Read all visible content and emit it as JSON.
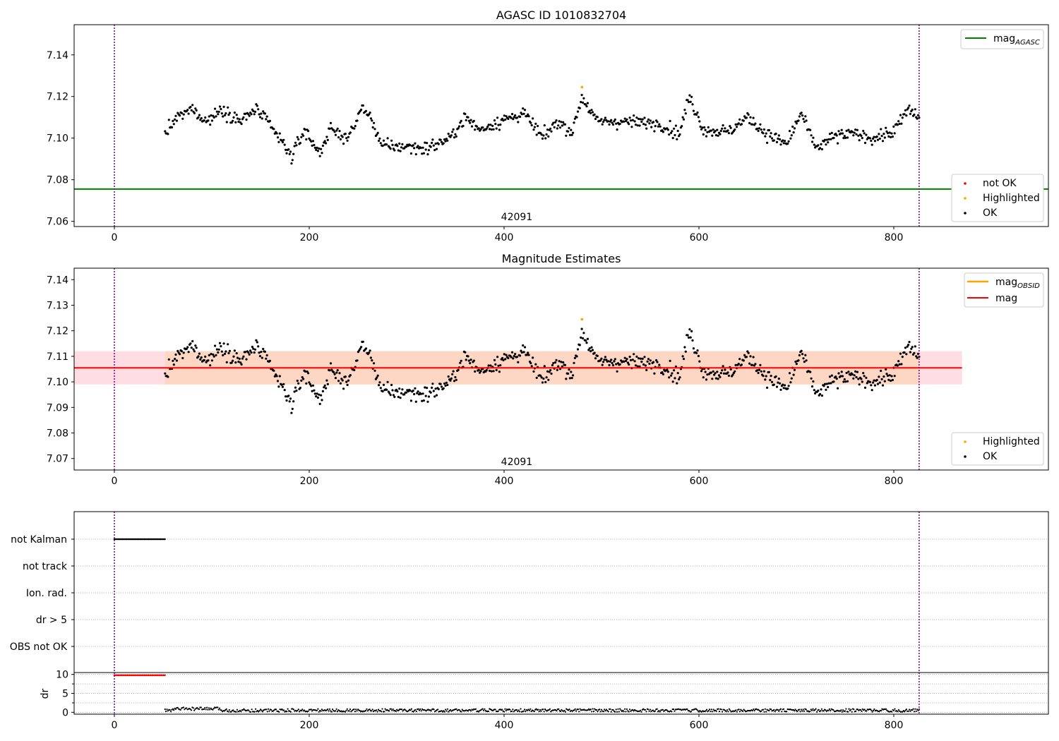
{
  "chart_data": [
    {
      "type": "scatter",
      "title": "AGASC ID 1010832704",
      "xlabel": "",
      "ylabel": "",
      "xlim": [
        -42,
        956
      ],
      "ylim": [
        7.0575,
        7.1545
      ],
      "x_ticks": [
        "0",
        "200",
        "400",
        "600",
        "800"
      ],
      "y_ticks": [
        "7.06",
        "7.08",
        "7.10",
        "7.12",
        "7.14"
      ],
      "vlines": [
        0,
        826
      ],
      "hline": {
        "label": "mag",
        "label_sub": "AGASC",
        "value": 7.0755,
        "color": "#008000"
      },
      "annotation": {
        "text": "42091",
        "x": 413,
        "y": 7.0605
      },
      "scatter_legend": [
        {
          "label": "not OK",
          "color": "#ff0000"
        },
        {
          "label": "Highlighted",
          "color": "#ffa500"
        },
        {
          "label": "OK",
          "color": "#000000"
        }
      ],
      "highlighted_point": {
        "x": 480,
        "y": 7.1245
      },
      "series": [
        {
          "name": "OK",
          "x_range": [
            52,
            826
          ],
          "count": 770,
          "baseline": 7.105,
          "color": "#000000"
        }
      ]
    },
    {
      "type": "scatter",
      "title": "Magnitude Estimates",
      "xlabel": "",
      "ylabel": "",
      "xlim": [
        -42,
        956
      ],
      "ylim": [
        7.0655,
        7.1445
      ],
      "x_ticks": [
        "0",
        "200",
        "400",
        "600",
        "800"
      ],
      "y_ticks": [
        "7.07",
        "7.08",
        "7.09",
        "7.10",
        "7.11",
        "7.12",
        "7.13",
        "7.14"
      ],
      "vlines": [
        0,
        826
      ],
      "mag": {
        "value": 7.1055,
        "color": "#ff0000",
        "band": [
          7.099,
          7.112
        ],
        "band_color": "#ffdde3",
        "band_obs_color": "#fdd7c4"
      },
      "line_legend": [
        {
          "label": "mag",
          "label_sub": "OBSID",
          "color": "#ffa500"
        },
        {
          "label": "mag",
          "label_sub": "",
          "color": "#ff0000"
        }
      ],
      "annotation": {
        "text": "42091",
        "x": 413,
        "y": 7.0675
      },
      "scatter_legend": [
        {
          "label": "Highlighted",
          "color": "#ffa500"
        },
        {
          "label": "OK",
          "color": "#000000"
        }
      ],
      "highlighted_point": {
        "x": 480,
        "y": 7.1245
      }
    },
    {
      "type": "scatter",
      "title": "",
      "xlim": [
        -42,
        956
      ],
      "x_ticks": [
        "0",
        "200",
        "400",
        "600",
        "800"
      ],
      "flag_rows": [
        "not Kalman",
        "not track",
        "Ion. rad.",
        "dr > 5",
        "OBS not OK"
      ],
      "not_kalman_x_range": [
        0,
        52
      ],
      "vlines": [
        0,
        826
      ]
    },
    {
      "type": "scatter",
      "title": "",
      "xlabel": "",
      "ylabel": "dr",
      "xlim": [
        -42,
        956
      ],
      "ylim": [
        -0.5,
        10.5
      ],
      "x_ticks": [
        "0",
        "200",
        "400",
        "600",
        "800"
      ],
      "y_ticks": [
        "0",
        "5",
        "10"
      ],
      "red_segment": {
        "x_range": [
          0,
          52
        ],
        "value": 9.8,
        "color": "#ff0000"
      },
      "black_series": {
        "x_range": [
          52,
          826
        ],
        "approx_value": 0.5,
        "color": "#000000"
      },
      "vlines": [
        0,
        826
      ]
    }
  ]
}
